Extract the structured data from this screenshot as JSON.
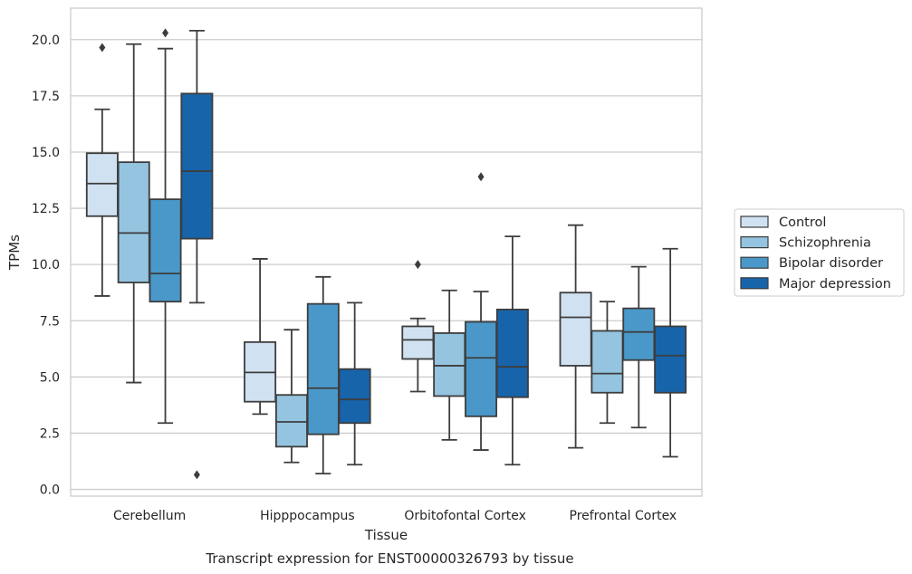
{
  "chart_data": {
    "type": "box",
    "title": "",
    "caption": "Transcript expression for ENST00000326793 by tissue",
    "xlabel": "Tissue",
    "ylabel": "TPMs",
    "ylim": [
      -0.3,
      21.4
    ],
    "yticks": [
      "0.0",
      "2.5",
      "5.0",
      "7.5",
      "10.0",
      "12.5",
      "15.0",
      "17.5",
      "20.0"
    ],
    "grid": "horizontal",
    "legend_position": "right",
    "categories": [
      "Cerebellum",
      "Hipppocampus",
      "Orbitofontal Cortex",
      "Prefrontal Cortex"
    ],
    "series": [
      {
        "name": "Control",
        "color": "#d0e1f2",
        "boxes": [
          {
            "whislo": 8.6,
            "q1": 12.15,
            "med": 13.6,
            "q3": 14.95,
            "whishi": 16.9,
            "fliers": [
              19.65
            ]
          },
          {
            "whislo": 3.35,
            "q1": 3.9,
            "med": 5.2,
            "q3": 6.55,
            "whishi": 10.25,
            "fliers": []
          },
          {
            "whislo": 4.35,
            "q1": 5.8,
            "med": 6.65,
            "q3": 7.25,
            "whishi": 7.6,
            "fliers": [
              10.0
            ]
          },
          {
            "whislo": 1.85,
            "q1": 5.5,
            "med": 7.65,
            "q3": 8.75,
            "whishi": 11.75,
            "fliers": []
          }
        ]
      },
      {
        "name": "Schizophrenia",
        "color": "#94c4df",
        "boxes": [
          {
            "whislo": 4.75,
            "q1": 9.2,
            "med": 11.4,
            "q3": 14.55,
            "whishi": 19.8,
            "fliers": []
          },
          {
            "whislo": 1.2,
            "q1": 1.9,
            "med": 3.0,
            "q3": 4.2,
            "whishi": 7.1,
            "fliers": []
          },
          {
            "whislo": 2.2,
            "q1": 4.15,
            "med": 5.5,
            "q3": 6.95,
            "whishi": 8.85,
            "fliers": []
          },
          {
            "whislo": 2.95,
            "q1": 4.3,
            "med": 5.15,
            "q3": 7.05,
            "whishi": 8.35,
            "fliers": []
          }
        ]
      },
      {
        "name": "Bipolar disorder",
        "color": "#4a98c9",
        "boxes": [
          {
            "whislo": 2.95,
            "q1": 8.35,
            "med": 9.6,
            "q3": 12.9,
            "whishi": 19.6,
            "fliers": [
              20.3
            ]
          },
          {
            "whislo": 0.7,
            "q1": 2.45,
            "med": 4.5,
            "q3": 8.25,
            "whishi": 9.45,
            "fliers": []
          },
          {
            "whislo": 1.75,
            "q1": 3.25,
            "med": 5.85,
            "q3": 7.45,
            "whishi": 8.8,
            "fliers": [
              13.9
            ]
          },
          {
            "whislo": 2.75,
            "q1": 5.75,
            "med": 7.0,
            "q3": 8.05,
            "whishi": 9.9,
            "fliers": []
          }
        ]
      },
      {
        "name": "Major depression",
        "color": "#1764ab",
        "boxes": [
          {
            "whislo": 8.3,
            "q1": 11.15,
            "med": 14.15,
            "q3": 17.6,
            "whishi": 20.4,
            "fliers": [
              0.65
            ]
          },
          {
            "whislo": 1.1,
            "q1": 2.95,
            "med": 4.0,
            "q3": 5.35,
            "whishi": 8.3,
            "fliers": []
          },
          {
            "whislo": 1.1,
            "q1": 4.1,
            "med": 5.45,
            "q3": 8.0,
            "whishi": 11.25,
            "fliers": []
          },
          {
            "whislo": 1.45,
            "q1": 4.3,
            "med": 5.95,
            "q3": 7.25,
            "whishi": 10.7,
            "fliers": []
          }
        ]
      }
    ]
  }
}
